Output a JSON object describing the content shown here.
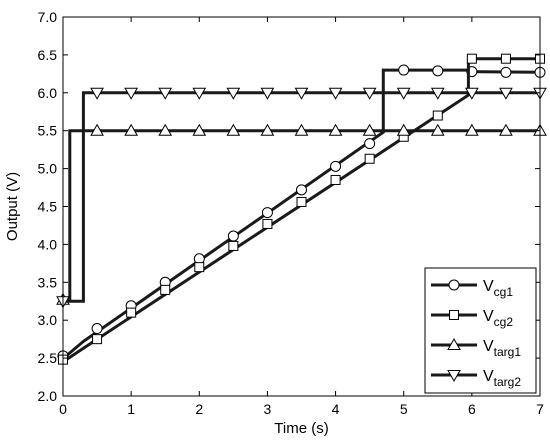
{
  "chart_data": {
    "type": "line",
    "xlabel": "Time (s)",
    "ylabel": "Output (V)",
    "xlim": [
      0,
      7
    ],
    "ylim": [
      2.0,
      7.0
    ],
    "x_ticks": [
      "0",
      "1",
      "2",
      "3",
      "4",
      "5",
      "6",
      "7"
    ],
    "y_ticks": [
      "2.0",
      "2.5",
      "3.0",
      "3.5",
      "4.0",
      "4.5",
      "5.0",
      "5.5",
      "6.0",
      "6.5",
      "7.0"
    ],
    "grid": false,
    "legend_position": "bottom-right",
    "series": [
      {
        "name": "Vcg1",
        "base": "V",
        "sub": "cg1",
        "marker": "circle",
        "x": [
          0,
          0.05,
          0.3,
          0.3,
          4.7,
          4.7,
          5.95,
          5.95,
          7.0
        ],
        "y": [
          2.52,
          2.53,
          2.72,
          2.72,
          5.48,
          6.3,
          6.3,
          6.28,
          6.27
        ],
        "markers_x": [
          0,
          0.5,
          1,
          1.5,
          2,
          2.5,
          3,
          3.5,
          4,
          4.5,
          5,
          5.5,
          6,
          6.5,
          7
        ],
        "markers_y": [
          2.53,
          2.89,
          3.19,
          3.5,
          3.81,
          4.11,
          4.42,
          4.72,
          5.03,
          5.33,
          6.3,
          6.29,
          6.28,
          6.27,
          6.27
        ]
      },
      {
        "name": "Vcg2",
        "base": "V",
        "sub": "cg2",
        "marker": "square",
        "x": [
          0,
          0.05,
          0.3,
          0.3,
          5.95,
          5.95,
          7.0
        ],
        "y": [
          2.47,
          2.48,
          2.63,
          2.63,
          5.97,
          6.45,
          6.45
        ],
        "markers_x": [
          0,
          0.5,
          1,
          1.5,
          2,
          2.5,
          3,
          3.5,
          4,
          4.5,
          5,
          5.5,
          6,
          6.5,
          7
        ],
        "markers_y": [
          2.48,
          2.75,
          3.1,
          3.4,
          3.7,
          3.98,
          4.27,
          4.56,
          4.85,
          5.13,
          5.42,
          5.7,
          6.45,
          6.45,
          6.45
        ]
      },
      {
        "name": "Vtarg1",
        "base": "V",
        "sub": "targ1",
        "marker": "triangle-up",
        "x": [
          0,
          0.1,
          0.1,
          7.0
        ],
        "y": [
          3.27,
          3.27,
          5.5,
          5.5
        ],
        "markers_x": [
          0,
          0.5,
          1,
          1.5,
          2,
          2.5,
          3,
          3.5,
          4,
          4.5,
          5,
          5.5,
          6,
          6.5,
          7
        ],
        "markers_y": [
          3.27,
          5.5,
          5.5,
          5.5,
          5.5,
          5.5,
          5.5,
          5.5,
          5.5,
          5.5,
          5.5,
          5.5,
          5.5,
          5.5,
          5.5
        ]
      },
      {
        "name": "Vtarg2",
        "base": "V",
        "sub": "targ2",
        "marker": "triangle-down",
        "x": [
          0,
          0.3,
          0.3,
          7.0
        ],
        "y": [
          3.25,
          3.25,
          6.0,
          6.0
        ],
        "markers_x": [
          0,
          0.5,
          1,
          1.5,
          2,
          2.5,
          3,
          3.5,
          4,
          4.5,
          5,
          5.5,
          6,
          6.5,
          7
        ],
        "markers_y": [
          3.25,
          6.0,
          6.0,
          6.0,
          6.0,
          6.0,
          6.0,
          6.0,
          6.0,
          6.0,
          6.0,
          6.0,
          6.0,
          6.0,
          6.0
        ]
      }
    ]
  }
}
